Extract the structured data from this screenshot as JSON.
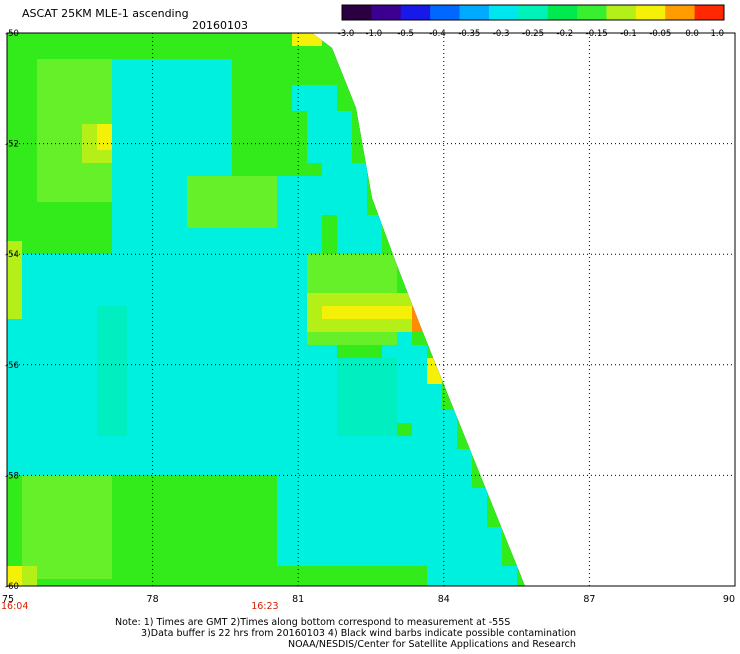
{
  "header": {
    "title": "ASCAT 25KM MLE-1 ascending",
    "date": "20160103"
  },
  "colorbar": {
    "labels": [
      "-3.0",
      "-1.0",
      "-0.5",
      "-0.4",
      "-0.35",
      "-0.3",
      "-0.25",
      "-0.2",
      "-0.15",
      "-0.1",
      "-0.05",
      "0.0",
      "1.0"
    ],
    "colors": [
      "#2b0040",
      "#3b0090",
      "#1818e8",
      "#0068ff",
      "#00aaff",
      "#00e6ee",
      "#00f2b8",
      "#00ea50",
      "#38f030",
      "#b4f018",
      "#f4f008",
      "#ff9c00",
      "#ff2800"
    ]
  },
  "map": {
    "lon_ticks": [
      "75",
      "78",
      "81",
      "84",
      "87",
      "90"
    ],
    "lat_ticks": [
      "-50",
      "-52",
      "-54",
      "-56",
      "-58",
      "-60"
    ],
    "time_labels": [
      "16:04",
      "16:23"
    ],
    "time_color": "#d42000",
    "field_colors": {
      "green": "#33ea1a",
      "light_green": "#66f02a",
      "yellow_green": "#b4f018",
      "yellow": "#f4f008",
      "orange": "#ff8c00",
      "cyan": "#00f0e0",
      "aqua": "#00eec0"
    }
  },
  "footer": {
    "line1": "Note: 1) Times are GMT 2)Times along bottom correspond to measurement at -55S",
    "line2": "3)Data buffer is 22 hrs from 20160103 4) Black wind barbs indicate possible contamination",
    "line3": "NOAA/NESDIS/Center for Satellite Applications and Research"
  }
}
